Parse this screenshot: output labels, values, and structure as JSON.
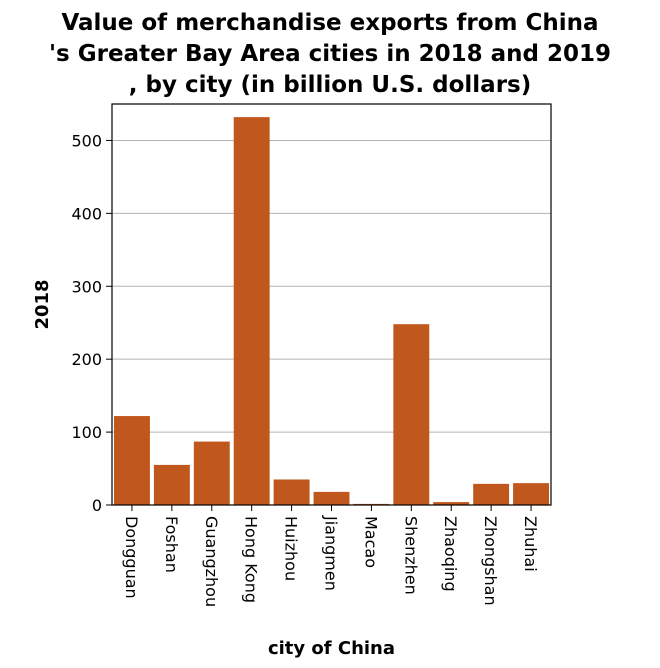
{
  "chart_data": {
    "type": "bar",
    "title_lines": [
      "Value of merchandise exports from China",
      "'s Greater Bay Area cities in 2018 and 2019",
      ", by city (in billion U.S. dollars)"
    ],
    "xlabel": "city of China",
    "ylabel": "2018",
    "categories": [
      "Dongguan",
      "Foshan",
      "Guangzhou",
      "Hong Kong",
      "Huizhou",
      "Jiangmen",
      "Macao",
      "Shenzhen",
      "Zhaoqing",
      "Zhongshan",
      "Zhuhai"
    ],
    "values": [
      122,
      55,
      87,
      532,
      35,
      18,
      1.5,
      248,
      4,
      29,
      30
    ],
    "ylim": [
      0,
      550
    ],
    "yticks": [
      0,
      100,
      200,
      300,
      400,
      500
    ],
    "grid": true,
    "bar_color": "#c0571c",
    "plot_background": "#ffffff",
    "grid_color": "#b3b3b3"
  }
}
